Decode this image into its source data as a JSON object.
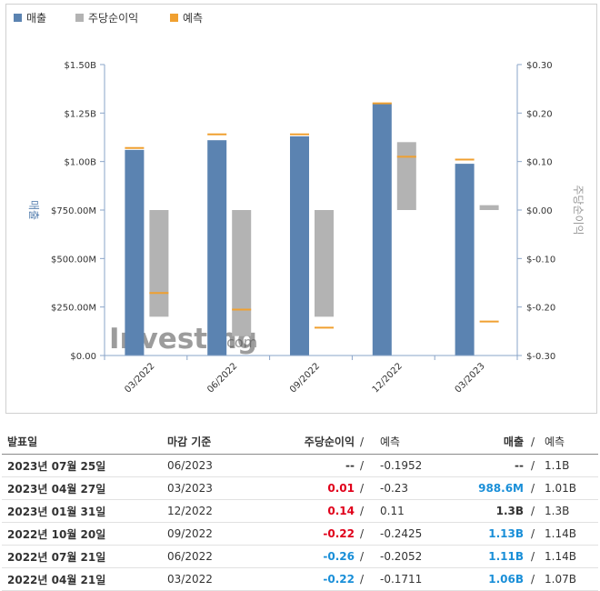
{
  "chart_data": {
    "type": "bar",
    "legend": {
      "placement": "top-left",
      "items": [
        {
          "name": "매출",
          "color": "#5b83b1",
          "icon": "square"
        },
        {
          "name": "주당순이익",
          "color": "#b3b3b3",
          "icon": "square"
        },
        {
          "name": "예측",
          "color": "#f0a030",
          "icon": "square"
        }
      ]
    },
    "categories": [
      "03/2022",
      "06/2022",
      "09/2022",
      "12/2022",
      "03/2023"
    ],
    "ylabel_left": "매출",
    "ylabel_right": "주당순이익",
    "left_axis": {
      "ylim": [
        0,
        1.5
      ],
      "ticks": [
        0,
        0.25,
        0.5,
        0.75,
        1.0,
        1.25,
        1.5
      ],
      "tick_labels": [
        "$0.00",
        "$250.00M",
        "$500.00M",
        "$750.00M",
        "$1.00B",
        "$1.25B",
        "$1.50B"
      ]
    },
    "right_axis": {
      "ylim": [
        -0.3,
        0.3
      ],
      "ticks": [
        -0.3,
        -0.2,
        -0.1,
        0,
        0.1,
        0.2,
        0.3
      ],
      "tick_labels": [
        "$-0.30",
        "$-0.20",
        "$-0.10",
        "$0.00",
        "$0.10",
        "$0.20",
        "$0.30"
      ]
    },
    "grid": false,
    "series": [
      {
        "name": "매출",
        "axis": "left",
        "unit": "billion USD",
        "values": [
          1.06,
          1.11,
          1.13,
          1.3,
          0.9886
        ]
      },
      {
        "name": "매출 예측",
        "axis": "left",
        "unit": "billion USD",
        "values": [
          1.07,
          1.14,
          1.14,
          1.3,
          1.01
        ]
      },
      {
        "name": "주당순이익",
        "axis": "right",
        "values": [
          -0.22,
          -0.26,
          -0.22,
          0.14,
          0.01
        ]
      },
      {
        "name": "주당순이익 예측",
        "axis": "right",
        "values": [
          -0.1711,
          -0.2052,
          -0.2425,
          0.11,
          -0.23
        ]
      }
    ],
    "colors": {
      "revenue": "#5b83b1",
      "eps": "#b3b3b3",
      "forecast": "#f0a030",
      "axis": "#8aa4c8"
    },
    "watermark": {
      "brand": "Investing",
      "suffix": ".com"
    }
  },
  "table": {
    "headers": {
      "date": "발표일",
      "period": "마감 기준",
      "eps": "주당순이익",
      "eps_sep": "/",
      "eps_forecast": "예측",
      "revenue": "매출",
      "rev_sep": "/",
      "rev_forecast": "예측"
    },
    "rows": [
      {
        "date": "2023년 07월 25일",
        "period": "06/2023",
        "eps": "--",
        "eps_color": "",
        "eps_sep": "/",
        "eps_forecast": "-0.1952",
        "revenue": "--",
        "rev_color": "",
        "rev_sep": "/",
        "rev_forecast": "1.1B"
      },
      {
        "date": "2023년 04월 27일",
        "period": "03/2023",
        "eps": "0.01",
        "eps_color": "red",
        "eps_sep": "/",
        "eps_forecast": "-0.23",
        "revenue": "988.6M",
        "rev_color": "blue",
        "rev_sep": "/",
        "rev_forecast": "1.01B"
      },
      {
        "date": "2023년 01월 31일",
        "period": "12/2022",
        "eps": "0.14",
        "eps_color": "red",
        "eps_sep": "/",
        "eps_forecast": "0.11",
        "revenue": "1.3B",
        "rev_color": "",
        "rev_sep": "/",
        "rev_forecast": "1.3B"
      },
      {
        "date": "2022년 10월 20일",
        "period": "09/2022",
        "eps": "-0.22",
        "eps_color": "red",
        "eps_sep": "/",
        "eps_forecast": "-0.2425",
        "revenue": "1.13B",
        "rev_color": "blue",
        "rev_sep": "/",
        "rev_forecast": "1.14B"
      },
      {
        "date": "2022년 07월 21일",
        "period": "06/2022",
        "eps": "-0.26",
        "eps_color": "blue",
        "eps_sep": "/",
        "eps_forecast": "-0.2052",
        "revenue": "1.11B",
        "rev_color": "blue",
        "rev_sep": "/",
        "rev_forecast": "1.14B"
      },
      {
        "date": "2022년 04월 21일",
        "period": "03/2022",
        "eps": "-0.22",
        "eps_color": "blue",
        "eps_sep": "/",
        "eps_forecast": "-0.1711",
        "revenue": "1.06B",
        "rev_color": "blue",
        "rev_sep": "/",
        "rev_forecast": "1.07B"
      }
    ]
  }
}
